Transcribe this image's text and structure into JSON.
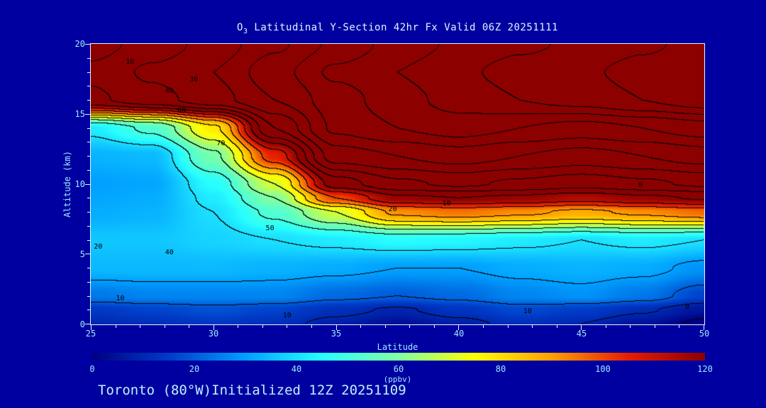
{
  "title": {
    "o": "O",
    "sub": "3",
    "rest": " Latitudinal Y-Section 42hr  Fx Valid 06Z 20251111"
  },
  "footer": "Toronto (80°W)Initialized 12Z 20251109",
  "colors": {
    "background": "#0000A0",
    "axis_text": "#9FE8FF",
    "title_text": "#D8F8FF",
    "footer_text": "#BFF0FF",
    "frame": "#E8F4FF",
    "contour": "#000000"
  },
  "axes": {
    "x_label": "Latitude",
    "y_label": "Altitude (km)",
    "x_ticks": [
      25,
      30,
      35,
      40,
      45,
      50
    ],
    "y_ticks": [
      0,
      5,
      10,
      15,
      20
    ],
    "x_minor_step": 1,
    "y_minor_step": 1
  },
  "colorbar": {
    "label": "(ppbv)",
    "ticks": [
      0,
      20,
      40,
      60,
      80,
      100,
      120
    ],
    "min": 0,
    "max": 120
  },
  "chart_data": {
    "type": "heatmap",
    "field": "ozone_mixing_ratio",
    "units": "ppbv",
    "x_name": "Latitude",
    "y_name": "Altitude (km)",
    "x_range": [
      25,
      50
    ],
    "y_range": [
      0,
      20
    ],
    "fill_min": 0,
    "fill_max": 120,
    "contour_interval": 10,
    "lat": [
      25,
      27.5,
      30,
      32.5,
      35,
      37.5,
      40,
      42.5,
      45,
      47.5,
      50
    ],
    "alt": [
      0,
      1,
      2,
      4,
      6,
      8,
      9,
      10,
      12,
      14,
      16,
      18,
      20
    ],
    "values": [
      [
        10,
        12,
        14,
        12,
        8,
        4,
        8,
        12,
        10,
        5,
        -2
      ],
      [
        14,
        16,
        18,
        16,
        12,
        9,
        13,
        17,
        15,
        11,
        5
      ],
      [
        24,
        26,
        26,
        26,
        22,
        20,
        22,
        26,
        28,
        24,
        16
      ],
      [
        34,
        34,
        34,
        33,
        32,
        30,
        30,
        32,
        33,
        32,
        28
      ],
      [
        36,
        36,
        38,
        40,
        42,
        45,
        44,
        42,
        40,
        42,
        40
      ],
      [
        32,
        33,
        40,
        52,
        70,
        92,
        95,
        92,
        88,
        92,
        96
      ],
      [
        31,
        32,
        42,
        60,
        100,
        118,
        120,
        118,
        114,
        118,
        121
      ],
      [
        30,
        31,
        45,
        70,
        125,
        138,
        142,
        138,
        134,
        138,
        142
      ],
      [
        33,
        34,
        58,
        105,
        155,
        160,
        165,
        160,
        156,
        160,
        165
      ],
      [
        42,
        52,
        78,
        140,
        172,
        180,
        185,
        180,
        176,
        180,
        185
      ],
      [
        128,
        136,
        146,
        160,
        175,
        186,
        194,
        200,
        204,
        210,
        216
      ],
      [
        132,
        142,
        150,
        166,
        182,
        190,
        198,
        204,
        208,
        214,
        220
      ],
      [
        126,
        134,
        144,
        158,
        172,
        184,
        192,
        198,
        202,
        208,
        214
      ]
    ],
    "colormap": [
      [
        0.0,
        0,
        0,
        131
      ],
      [
        0.125,
        0,
        60,
        200
      ],
      [
        0.25,
        0,
        160,
        255
      ],
      [
        0.375,
        40,
        255,
        255
      ],
      [
        0.5,
        130,
        255,
        160
      ],
      [
        0.625,
        255,
        255,
        0
      ],
      [
        0.75,
        255,
        160,
        0
      ],
      [
        0.875,
        230,
        30,
        0
      ],
      [
        1.0,
        140,
        0,
        0
      ]
    ],
    "contour_labels": [
      {
        "value": "10",
        "lat": 26.6,
        "alt": 18.7
      },
      {
        "value": "30",
        "lat": 29.2,
        "alt": 17.4
      },
      {
        "value": "40",
        "lat": 28.2,
        "alt": 16.6
      },
      {
        "value": "60",
        "lat": 28.7,
        "alt": 15.2
      },
      {
        "value": "70",
        "lat": 30.3,
        "alt": 12.9
      },
      {
        "value": "50",
        "lat": 32.3,
        "alt": 6.8
      },
      {
        "value": "40",
        "lat": 28.2,
        "alt": 5.1
      },
      {
        "value": "20",
        "lat": 25.3,
        "alt": 5.5
      },
      {
        "value": "10",
        "lat": 26.2,
        "alt": 1.8
      },
      {
        "value": "10",
        "lat": 33.0,
        "alt": 0.6
      },
      {
        "value": "20",
        "lat": 37.3,
        "alt": 8.2
      },
      {
        "value": "10",
        "lat": 39.5,
        "alt": 8.6
      },
      {
        "value": "0",
        "lat": 47.4,
        "alt": 9.9
      },
      {
        "value": "10",
        "lat": 42.8,
        "alt": 0.9
      },
      {
        "value": "0",
        "lat": 49.3,
        "alt": 1.2
      }
    ]
  }
}
